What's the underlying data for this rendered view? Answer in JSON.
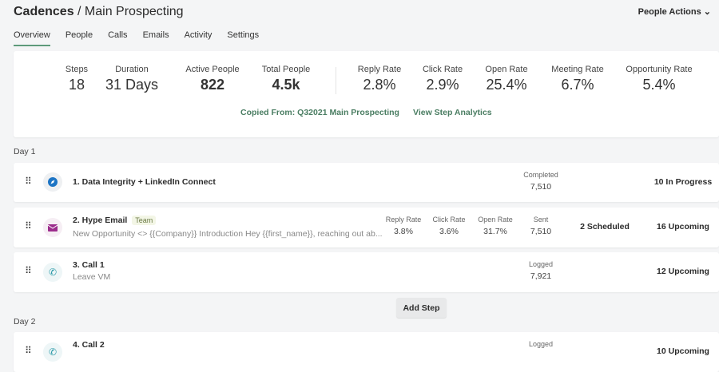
{
  "header": {
    "title_bold": "Cadences",
    "title_rest": " / Main Prospecting",
    "actions_label": "People Actions"
  },
  "tabs": [
    "Overview",
    "People",
    "Calls",
    "Emails",
    "Activity",
    "Settings"
  ],
  "stats": [
    {
      "label": "Steps",
      "value": "18"
    },
    {
      "label": "Duration",
      "value": "31 Days"
    },
    {
      "label": "Active People",
      "value": "822"
    },
    {
      "label": "Total People",
      "value": "4.5k"
    },
    {
      "label": "Reply Rate",
      "value": "2.8%"
    },
    {
      "label": "Click Rate",
      "value": "2.9%"
    },
    {
      "label": "Open Rate",
      "value": "25.4%"
    },
    {
      "label": "Meeting Rate",
      "value": "6.7%"
    },
    {
      "label": "Opportunity Rate",
      "value": "5.4%"
    }
  ],
  "links": {
    "copied": "Copied From: Q32021 Main Prospecting",
    "analytics": "View Step Analytics"
  },
  "days": [
    "Day 1",
    "Day 2"
  ],
  "steps": [
    {
      "name": "1. Data Integrity + LinkedIn Connect",
      "metric_label": "Completed",
      "metric_value": "7,510",
      "status": "10 In Progress"
    },
    {
      "name": "2. Hype Email",
      "badge": "Team",
      "subtitle": "New Opportunity <> {{Company}} Introduction Hey {{first_name}}, reaching out ab...",
      "reply_label": "Reply Rate",
      "reply": "3.8%",
      "click_label": "Click Rate",
      "click": "3.6%",
      "open_label": "Open Rate",
      "open": "31.7%",
      "metric_label": "Sent",
      "metric_value": "7,510",
      "scheduled": "2 Scheduled",
      "status": "16 Upcoming"
    },
    {
      "name": "3. Call 1",
      "subtitle": "Leave VM",
      "metric_label": "Logged",
      "metric_value": "7,921",
      "status": "12 Upcoming"
    },
    {
      "name": "4. Call 2",
      "metric_label": "Logged",
      "status": "10 Upcoming"
    }
  ],
  "add_step_label": "Add Step",
  "colors": {
    "accent": "#4a7d62"
  }
}
